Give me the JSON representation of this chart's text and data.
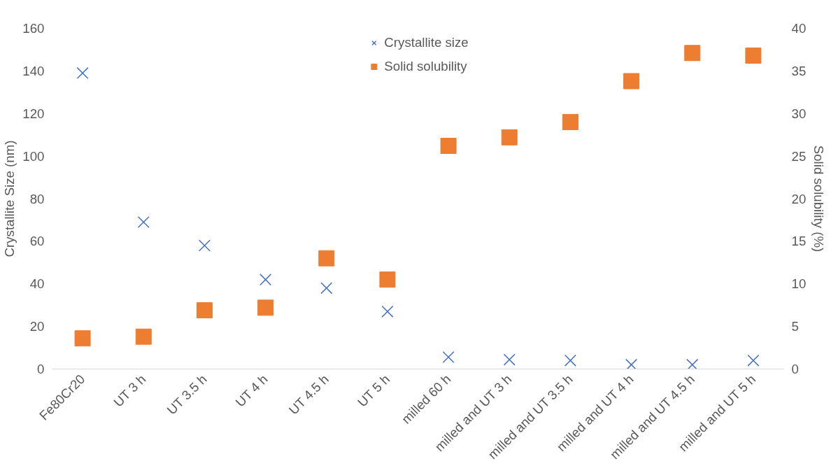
{
  "chart_data": {
    "type": "scatter",
    "ylabel": "Crystallite Size (nm)",
    "y2label": "Solid solubility (%)",
    "categories": [
      "Fe80Cr20",
      "UT 3 h",
      "UT 3.5 h",
      "UT 4 h",
      "UT 4.5 h",
      "UT 5 h",
      "milled 60 h",
      "milled and UT 3 h",
      "milled and UT 3.5 h",
      "milled and UT 4 h",
      "milled and UT 4.5 h",
      "milled and UT 5 h"
    ],
    "series": [
      {
        "name": "Crystallite size",
        "color": "#4472c4",
        "marker": "cross",
        "values": [
          139,
          69,
          58,
          42,
          38,
          27,
          5.6,
          4.4,
          4,
          2,
          2,
          4
        ]
      },
      {
        "name": "Solid solubility",
        "color": "#ed7d31",
        "marker": "square",
        "axis": "y2",
        "values": [
          3.6,
          3.8,
          6.9,
          7.2,
          13,
          10.5,
          26.2,
          27.2,
          29,
          33.8,
          37.1,
          36.8
        ]
      }
    ],
    "ylim": [
      0,
      160
    ],
    "yticks": [
      0,
      20,
      40,
      60,
      80,
      100,
      120,
      140,
      160
    ],
    "y2lim": [
      0,
      40
    ],
    "y2ticks": [
      0,
      5,
      10,
      15,
      20,
      25,
      30,
      35,
      40
    ],
    "grid": false,
    "legend": "top"
  }
}
